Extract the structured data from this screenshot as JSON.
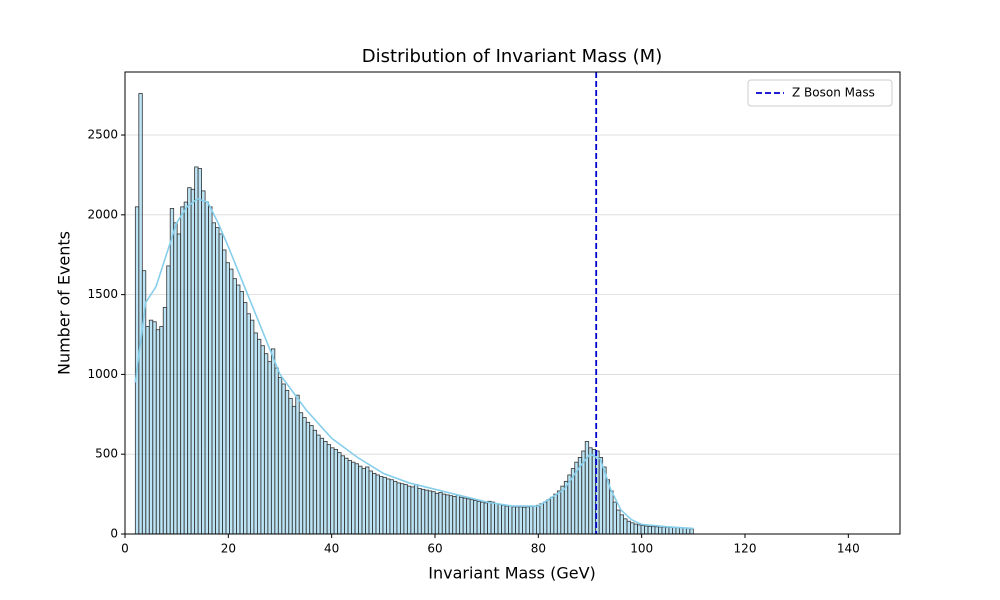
{
  "chart_data": {
    "type": "histogram",
    "title": "Distribution of Invariant Mass (M)",
    "xlabel": "Invariant Mass (GeV)",
    "ylabel": "Number of Events",
    "bins": [
      2,
      2.675,
      3.35,
      4.025,
      4.7,
      5.375,
      6.05,
      6.725,
      7.4,
      8.075,
      8.75,
      9.425,
      10.1,
      10.775,
      11.45,
      12.125,
      12.8,
      13.475,
      14.15,
      14.825,
      15.5,
      16.175,
      16.85,
      17.525,
      18.2,
      18.875,
      19.55,
      20.225,
      20.9,
      21.575,
      22.25,
      22.925,
      23.6,
      24.275,
      24.95,
      25.625,
      26.3,
      26.975,
      27.65,
      28.325,
      29,
      29.675,
      30.35,
      31.025,
      31.7,
      32.375,
      33.05,
      33.725,
      34.4,
      35.075,
      35.75,
      36.425,
      37.1,
      37.775,
      38.45,
      39.125,
      39.8,
      40.475,
      41.15,
      41.825,
      42.5,
      43.175,
      43.85,
      44.525,
      45.2,
      45.875,
      46.55,
      47.225,
      47.9,
      48.575,
      49.25,
      49.925,
      50.6,
      51.275,
      51.95,
      52.625,
      53.3,
      53.975,
      54.65,
      55.325,
      56,
      56.675,
      57.35,
      58.025,
      58.7,
      59.375,
      60.05,
      60.725,
      61.4,
      62.075,
      62.75,
      63.425,
      64.1,
      64.775,
      65.45,
      66.125,
      66.8,
      67.475,
      68.15,
      68.825,
      69.5,
      70.175,
      70.85,
      71.525,
      72.2,
      72.875,
      73.55,
      74.225,
      74.9,
      75.575,
      76.25,
      76.925,
      77.6,
      78.275,
      78.95,
      79.625,
      80.3,
      80.975,
      81.65,
      82.325,
      83,
      83.675,
      84.35,
      85.025,
      85.7,
      86.375,
      87.05,
      87.725,
      88.4,
      89.075,
      89.75,
      90.425,
      91.1,
      91.775,
      92.45,
      93.125,
      93.8,
      94.475,
      95.15,
      95.825,
      96.5,
      97.175,
      97.85,
      98.525,
      99.2,
      99.875,
      100.55,
      101.225,
      101.9,
      102.575,
      103.25,
      103.925,
      104.6,
      105.275,
      105.95,
      106.625,
      107.3,
      107.975,
      108.65,
      109.325,
      110
    ],
    "values": [
      2050,
      2760,
      1650,
      1300,
      1340,
      1330,
      1280,
      1300,
      1420,
      1680,
      2040,
      1950,
      1880,
      2050,
      2080,
      2170,
      2160,
      2300,
      2290,
      2150,
      2080,
      2050,
      1950,
      1920,
      1880,
      1780,
      1700,
      1660,
      1600,
      1560,
      1520,
      1450,
      1380,
      1340,
      1260,
      1220,
      1180,
      1130,
      1080,
      1160,
      1040,
      980,
      940,
      900,
      850,
      800,
      870,
      760,
      730,
      700,
      680,
      650,
      620,
      600,
      580,
      560,
      540,
      530,
      510,
      490,
      475,
      460,
      450,
      440,
      425,
      410,
      420,
      395,
      380,
      370,
      360,
      355,
      345,
      340,
      330,
      320,
      315,
      310,
      300,
      295,
      310,
      285,
      280,
      275,
      270,
      265,
      255,
      260,
      250,
      245,
      240,
      235,
      245,
      230,
      225,
      220,
      215,
      210,
      205,
      200,
      195,
      205,
      200,
      190,
      185,
      180,
      175,
      175,
      170,
      170,
      170,
      168,
      170,
      172,
      175,
      180,
      190,
      200,
      215,
      230,
      250,
      270,
      300,
      330,
      370,
      410,
      450,
      480,
      520,
      580,
      540,
      530,
      520,
      480,
      420,
      340,
      270,
      200,
      150,
      120,
      95,
      80,
      70,
      62,
      57,
      53,
      50,
      48,
      46,
      45,
      44,
      43,
      42,
      41,
      40,
      39,
      38,
      37,
      36,
      32
    ],
    "color": "#87ceeb",
    "edgecolor": "#333333",
    "kde": {
      "color": "#87ceeb",
      "x": [
        2,
        4,
        6,
        8,
        10,
        12,
        14,
        16,
        18,
        20,
        25,
        30,
        35,
        40,
        45,
        50,
        55,
        60,
        65,
        70,
        75,
        80,
        85,
        88,
        90,
        92,
        94,
        96,
        98,
        100,
        105,
        110
      ],
      "values": [
        950,
        1450,
        1550,
        1750,
        1950,
        2050,
        2100,
        2080,
        1950,
        1800,
        1400,
        1000,
        780,
        600,
        480,
        380,
        320,
        280,
        240,
        200,
        175,
        175,
        280,
        420,
        500,
        470,
        280,
        150,
        90,
        60,
        45,
        35
      ]
    },
    "vline": {
      "x": 91.2,
      "label": "Z Boson Mass",
      "color": "#0000cc",
      "style": "dashed"
    },
    "legend": "upper right",
    "grid": "y",
    "xlim": [
      0,
      150
    ],
    "xticks": [
      0,
      20,
      40,
      60,
      80,
      100,
      120,
      140
    ],
    "ylim": [
      0,
      2895
    ],
    "yticks": [
      0,
      500,
      1000,
      1500,
      2000,
      2500
    ]
  }
}
